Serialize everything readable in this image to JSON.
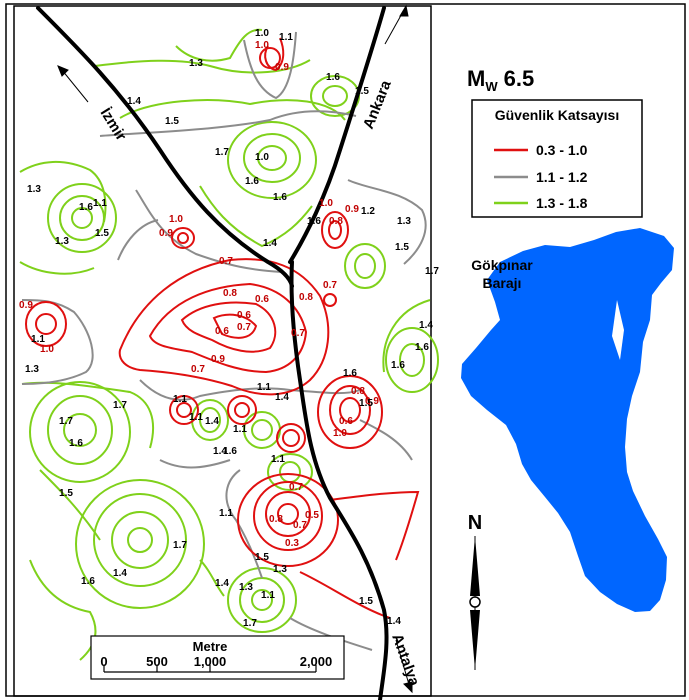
{
  "title": {
    "prefix": "M",
    "sub": "W",
    "value": "6.5"
  },
  "legend": {
    "title": "Güvenlik Katsayısı",
    "items": [
      {
        "label": "0.3 - 1.0",
        "color": "#e01010"
      },
      {
        "label": "1.1 - 1.2",
        "color": "#8c8c8c"
      },
      {
        "label": "1.3 - 1.8",
        "color": "#7fd11b"
      }
    ]
  },
  "roads": {
    "izmir": "İzmir",
    "ankara": "Ankara",
    "antalya": "Antalya"
  },
  "reservoir": {
    "line1": "Gökpınar",
    "line2": "Barajı",
    "color": "#0066ff"
  },
  "north_label": "N",
  "scale_bar": {
    "title": "Metre",
    "ticks": [
      "0",
      "500",
      "1,000",
      "2,000"
    ]
  },
  "contour_labels": {
    "red": [
      "1.0",
      "0.9",
      "1.0",
      "0.9",
      "1.0",
      "0.9",
      "0.8",
      "0.6",
      "0.6",
      "0.7",
      "0.6",
      "0.9",
      "0.8",
      "0.7",
      "0.9",
      "1.0",
      "0.8",
      "0.7",
      "0.7",
      "0.7",
      "0.8",
      "0.9",
      "1.0",
      "0.6",
      "0.7",
      "0.8",
      "0.5",
      "0.3",
      "0.7"
    ],
    "gray": [
      "1.0",
      "1.1",
      "1.1",
      "1.1",
      "1.2",
      "1.3",
      "1.0",
      "1.1",
      "1.1",
      "1.1",
      "1.4",
      "1.1",
      "1.4",
      "1.1",
      "1.1",
      "1.3",
      "1.1",
      "1.5",
      "1.4"
    ],
    "green": [
      "1.3",
      "1.4",
      "1.5",
      "1.7",
      "1.6",
      "1.6",
      "1.6",
      "1.5",
      "1.6",
      "1.5",
      "1.3",
      "1.3",
      "1.4",
      "1.6",
      "1.5",
      "1.7",
      "1.4",
      "1.6",
      "1.6",
      "1.3",
      "1.7",
      "1.7",
      "1.6",
      "1.5",
      "1.4",
      "1.7",
      "1.6",
      "1.5",
      "1.4",
      "1.6",
      "1.7",
      "1.5",
      "1.6",
      "1.4",
      "1.3"
    ]
  }
}
